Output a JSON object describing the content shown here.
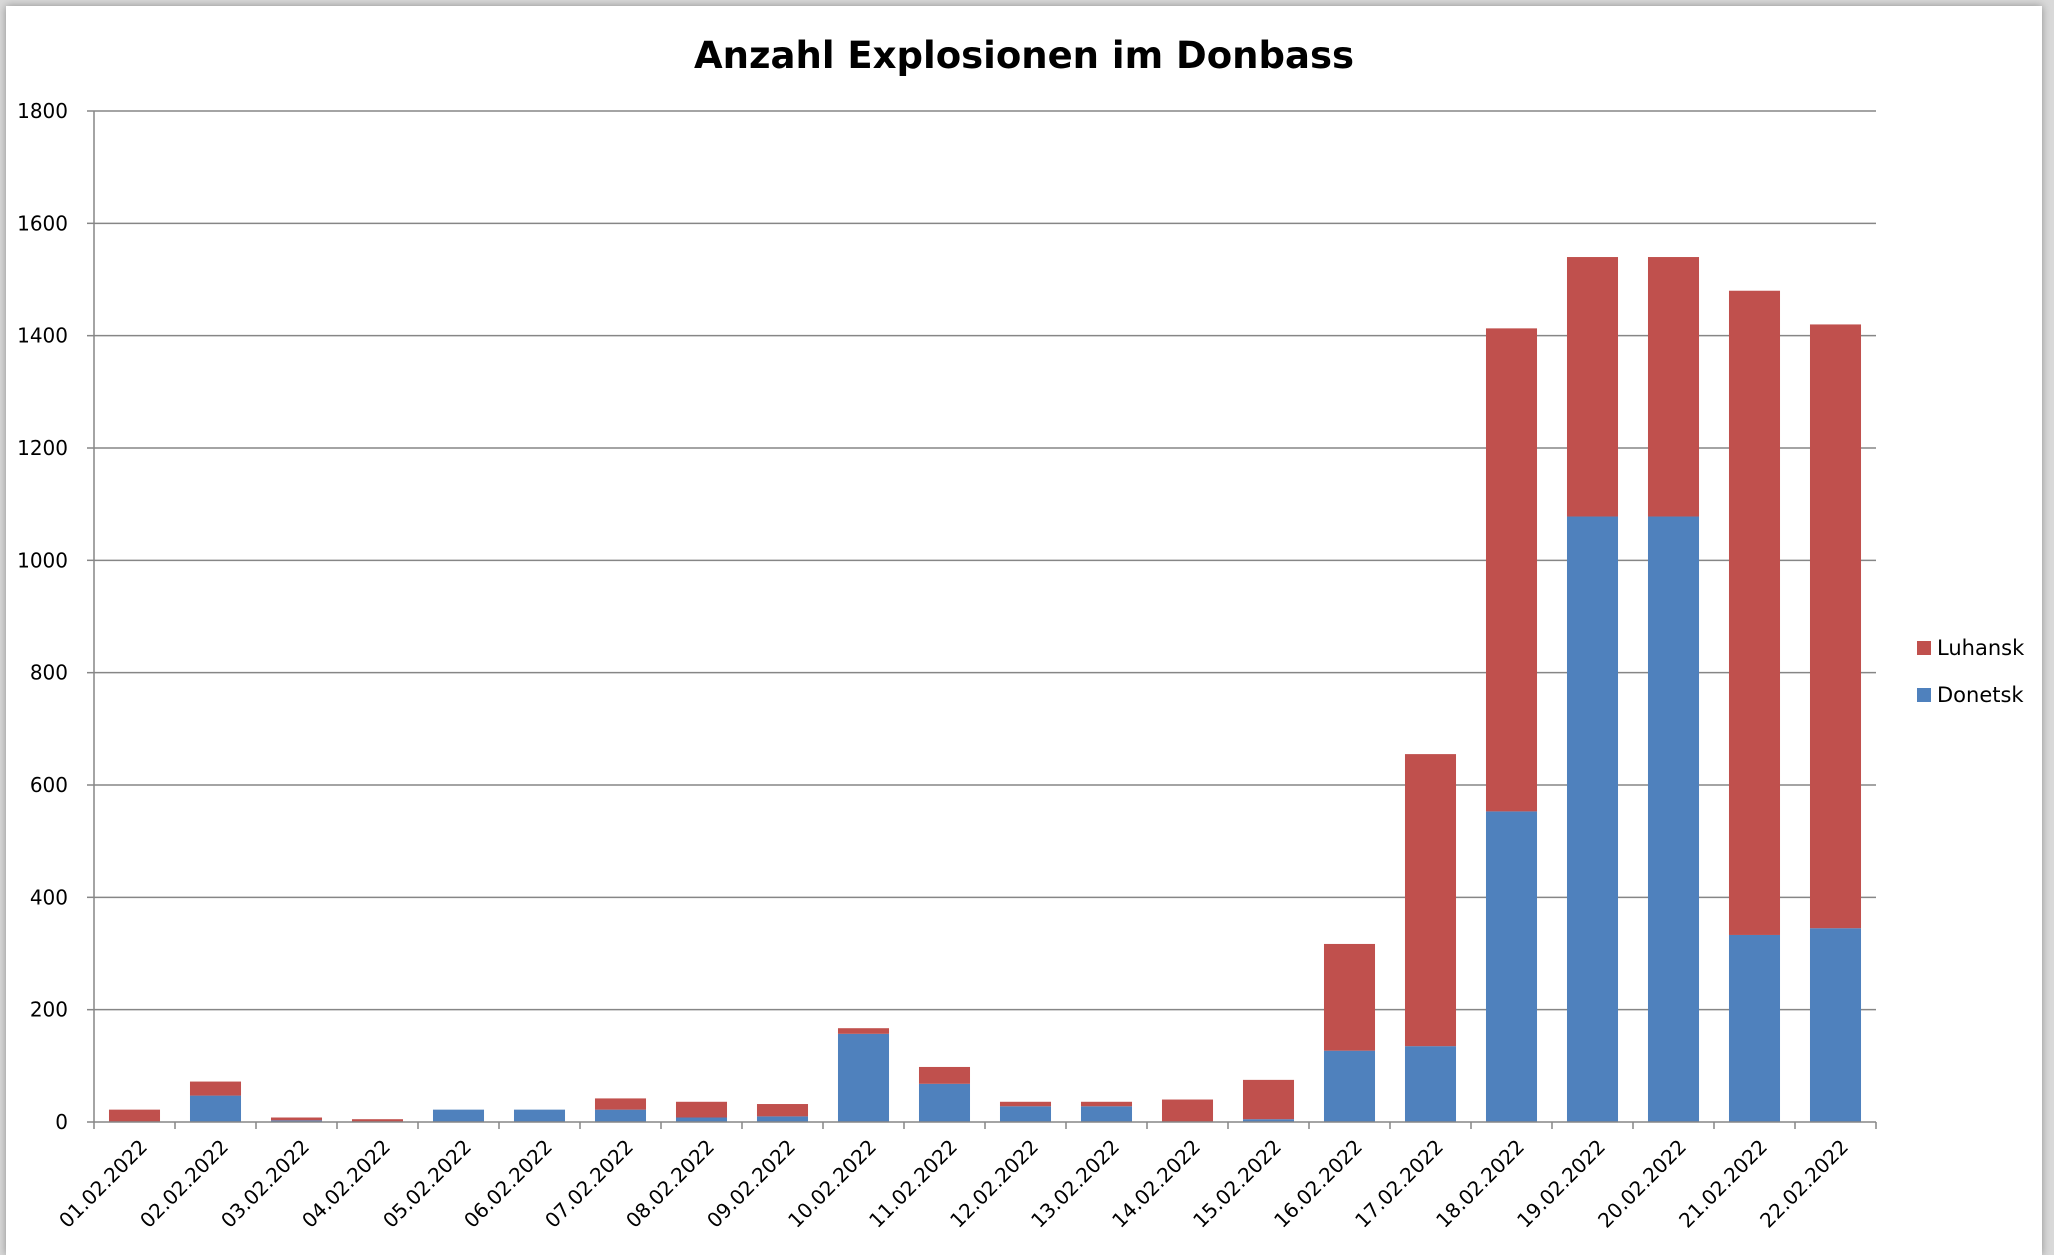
{
  "chart_data": {
    "type": "bar",
    "stacked": true,
    "title": "Anzahl Explosionen im Donbass",
    "xlabel": "",
    "ylabel": "",
    "ylim": [
      0,
      1800
    ],
    "yticks": [
      "0",
      "200",
      "400",
      "600",
      "800",
      "1000",
      "1200",
      "1400",
      "1600",
      "1800"
    ],
    "grid": true,
    "legend_position": "right",
    "categories": [
      "01.02.2022",
      "02.02.2022",
      "03.02.2022",
      "04.02.2022",
      "05.02.2022",
      "06.02.2022",
      "07.02.2022",
      "08.02.2022",
      "09.02.2022",
      "10.02.2022",
      "11.02.2022",
      "12.02.2022",
      "13.02.2022",
      "14.02.2022",
      "15.02.2022",
      "16.02.2022",
      "17.02.2022",
      "18.02.2022",
      "19.02.2022",
      "20.02.2022",
      "21.02.2022",
      "22.02.2022"
    ],
    "series": [
      {
        "name": "Donetsk",
        "color": "#4f81bd",
        "values": [
          0,
          47,
          3,
          0,
          22,
          22,
          22,
          8,
          10,
          157,
          68,
          28,
          28,
          0,
          5,
          127,
          135,
          553,
          1078,
          1078,
          333,
          345
        ]
      },
      {
        "name": "Luhansk",
        "color": "#c0504d",
        "values": [
          22,
          25,
          5,
          5,
          0,
          0,
          20,
          28,
          22,
          10,
          30,
          8,
          8,
          40,
          70,
          190,
          520,
          860,
          462,
          462,
          1147,
          1075
        ]
      }
    ]
  }
}
